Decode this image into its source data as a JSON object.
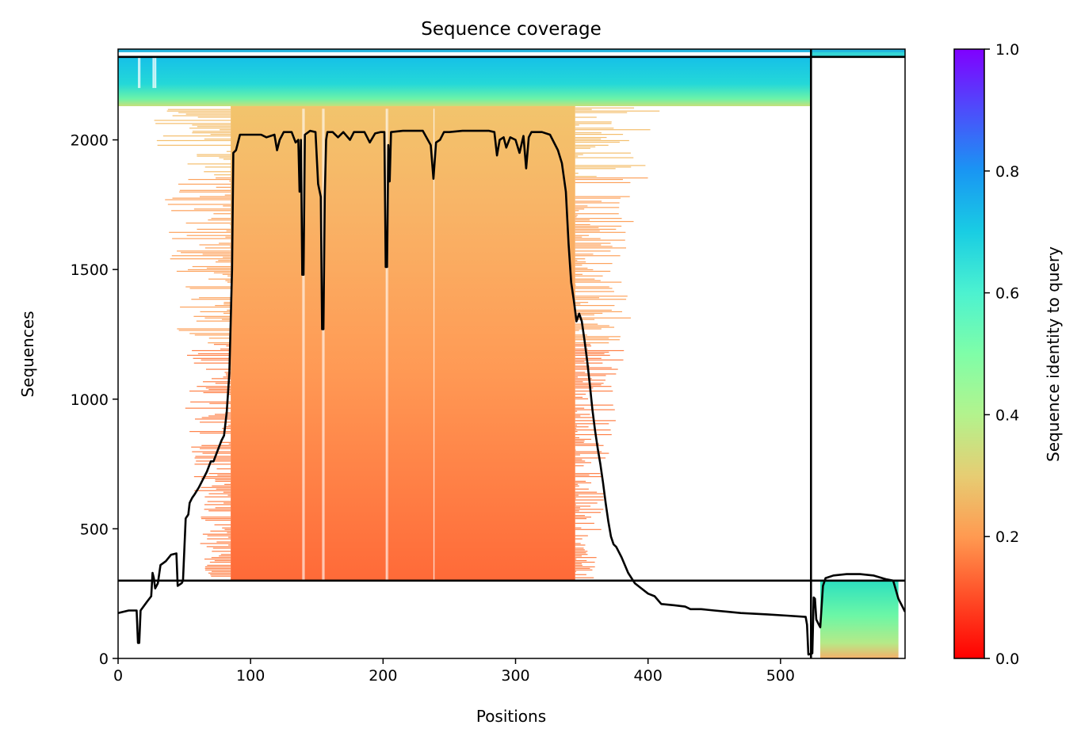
{
  "chart_data": {
    "type": "heatmap",
    "title": "Sequence coverage",
    "xlabel": "Positions",
    "ylabel": "Sequences",
    "xlim": [
      0,
      594
    ],
    "ylim": [
      0,
      2350
    ],
    "xticks": [
      0,
      100,
      200,
      300,
      400,
      500
    ],
    "yticks": [
      0,
      500,
      1000,
      1500,
      2000
    ],
    "x_tick_labels": [
      "0",
      "100",
      "200",
      "300",
      "400",
      "500"
    ],
    "y_tick_labels": [
      "0",
      "500",
      "1000",
      "1500",
      "2000"
    ],
    "chain_boundary_x": 523,
    "msa_section_boundaries_y": [
      300,
      2320
    ],
    "colorbar": {
      "label": "Sequence identity to query",
      "range": [
        0,
        1
      ],
      "ticks": [
        0.0,
        0.2,
        0.4,
        0.6,
        0.8,
        1.0
      ],
      "tick_labels": [
        "0.0",
        "0.2",
        "0.4",
        "0.6",
        "0.8",
        "1.0"
      ],
      "colormap": "rainbow_r"
    },
    "coverage_line": {
      "color": "#000000",
      "points": [
        [
          0,
          175
        ],
        [
          8,
          185
        ],
        [
          14,
          185
        ],
        [
          15,
          60
        ],
        [
          16,
          60
        ],
        [
          17,
          185
        ],
        [
          22,
          220
        ],
        [
          25,
          240
        ],
        [
          26,
          330
        ],
        [
          27,
          310
        ],
        [
          28,
          270
        ],
        [
          30,
          290
        ],
        [
          32,
          360
        ],
        [
          36,
          375
        ],
        [
          40,
          400
        ],
        [
          44,
          405
        ],
        [
          45,
          280
        ],
        [
          48,
          290
        ],
        [
          49,
          300
        ],
        [
          51,
          540
        ],
        [
          53,
          555
        ],
        [
          54,
          600
        ],
        [
          56,
          620
        ],
        [
          58,
          635
        ],
        [
          61,
          660
        ],
        [
          64,
          690
        ],
        [
          67,
          720
        ],
        [
          70,
          760
        ],
        [
          72,
          760
        ],
        [
          75,
          800
        ],
        [
          78,
          840
        ],
        [
          80,
          860
        ],
        [
          82,
          950
        ],
        [
          84,
          1100
        ],
        [
          85,
          1300
        ],
        [
          86,
          1500
        ],
        [
          87,
          1950
        ],
        [
          89,
          1960
        ],
        [
          92,
          2020
        ],
        [
          100,
          2020
        ],
        [
          108,
          2020
        ],
        [
          112,
          2010
        ],
        [
          118,
          2020
        ],
        [
          120,
          1960
        ],
        [
          122,
          2000
        ],
        [
          125,
          2030
        ],
        [
          131,
          2030
        ],
        [
          134,
          1990
        ],
        [
          136,
          2000
        ],
        [
          137,
          1800
        ],
        [
          138,
          2000
        ],
        [
          139,
          1480
        ],
        [
          140,
          1480
        ],
        [
          141,
          2020
        ],
        [
          145,
          2035
        ],
        [
          149,
          2030
        ],
        [
          151,
          1830
        ],
        [
          153,
          1780
        ],
        [
          154,
          1270
        ],
        [
          155,
          1270
        ],
        [
          156,
          1780
        ],
        [
          157,
          2000
        ],
        [
          158,
          2030
        ],
        [
          162,
          2030
        ],
        [
          166,
          2010
        ],
        [
          170,
          2030
        ],
        [
          175,
          2000
        ],
        [
          178,
          2030
        ],
        [
          186,
          2030
        ],
        [
          190,
          1990
        ],
        [
          194,
          2025
        ],
        [
          198,
          2030
        ],
        [
          201,
          2030
        ],
        [
          202,
          1510
        ],
        [
          203,
          1510
        ],
        [
          204,
          1980
        ],
        [
          205,
          1840
        ],
        [
          206,
          2030
        ],
        [
          215,
          2035
        ],
        [
          230,
          2035
        ],
        [
          236,
          1980
        ],
        [
          238,
          1850
        ],
        [
          240,
          1990
        ],
        [
          243,
          2000
        ],
        [
          246,
          2030
        ],
        [
          250,
          2030
        ],
        [
          260,
          2035
        ],
        [
          280,
          2035
        ],
        [
          284,
          2030
        ],
        [
          286,
          1940
        ],
        [
          288,
          2000
        ],
        [
          291,
          2010
        ],
        [
          293,
          1970
        ],
        [
          296,
          2010
        ],
        [
          300,
          2000
        ],
        [
          303,
          1950
        ],
        [
          306,
          2015
        ],
        [
          308,
          1890
        ],
        [
          310,
          2010
        ],
        [
          312,
          2030
        ],
        [
          320,
          2030
        ],
        [
          326,
          2020
        ],
        [
          332,
          1960
        ],
        [
          335,
          1910
        ],
        [
          338,
          1800
        ],
        [
          340,
          1600
        ],
        [
          342,
          1450
        ],
        [
          344,
          1380
        ],
        [
          346,
          1300
        ],
        [
          348,
          1330
        ],
        [
          350,
          1300
        ],
        [
          352,
          1230
        ],
        [
          354,
          1150
        ],
        [
          356,
          1060
        ],
        [
          358,
          960
        ],
        [
          360,
          880
        ],
        [
          362,
          810
        ],
        [
          364,
          750
        ],
        [
          366,
          680
        ],
        [
          368,
          600
        ],
        [
          370,
          530
        ],
        [
          372,
          470
        ],
        [
          374,
          440
        ],
        [
          376,
          430
        ],
        [
          380,
          390
        ],
        [
          385,
          330
        ],
        [
          390,
          290
        ],
        [
          395,
          270
        ],
        [
          400,
          250
        ],
        [
          405,
          240
        ],
        [
          410,
          210
        ],
        [
          420,
          205
        ],
        [
          428,
          200
        ],
        [
          432,
          190
        ],
        [
          440,
          190
        ],
        [
          450,
          185
        ],
        [
          460,
          180
        ],
        [
          470,
          175
        ],
        [
          490,
          170
        ],
        [
          505,
          165
        ],
        [
          519,
          160
        ],
        [
          520,
          130
        ],
        [
          521,
          15
        ],
        [
          524,
          20
        ],
        [
          525,
          235
        ],
        [
          526,
          230
        ],
        [
          527,
          150
        ],
        [
          529,
          130
        ],
        [
          530,
          120
        ],
        [
          532,
          280
        ],
        [
          534,
          310
        ],
        [
          540,
          320
        ],
        [
          550,
          325
        ],
        [
          560,
          325
        ],
        [
          570,
          320
        ],
        [
          580,
          305
        ],
        [
          585,
          300
        ],
        [
          589,
          230
        ],
        [
          592,
          200
        ],
        [
          594,
          180
        ]
      ]
    }
  }
}
